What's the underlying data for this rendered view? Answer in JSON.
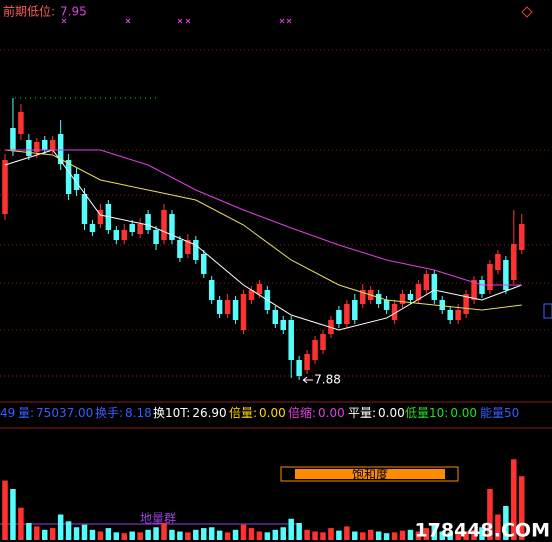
{
  "chart_data": {
    "type": "candlestick",
    "prior_low": {
      "label": "前期低位:",
      "value": 7.95
    },
    "low_label": 7.88,
    "low_index": 37,
    "up_color": "#ff3232",
    "down_color": "#54fcfc",
    "ylim": [
      7.78,
      9.68
    ],
    "candles": [
      [
        8.71,
        9.01,
        8.68,
        8.98
      ],
      [
        9.14,
        9.29,
        9.0,
        9.03
      ],
      [
        9.11,
        9.26,
        9.08,
        9.22
      ],
      [
        9.08,
        9.11,
        8.98,
        9.0
      ],
      [
        9.02,
        9.09,
        8.99,
        9.07
      ],
      [
        9.08,
        9.1,
        9.01,
        9.03
      ],
      [
        9.03,
        9.1,
        9.01,
        9.08
      ],
      [
        9.11,
        9.18,
        8.93,
        8.96
      ],
      [
        8.98,
        9.01,
        8.78,
        8.81
      ],
      [
        8.91,
        8.94,
        8.8,
        8.83
      ],
      [
        8.81,
        8.84,
        8.63,
        8.66
      ],
      [
        8.66,
        8.68,
        8.6,
        8.62
      ],
      [
        8.66,
        8.76,
        8.64,
        8.73
      ],
      [
        8.76,
        8.78,
        8.61,
        8.63
      ],
      [
        8.63,
        8.65,
        8.56,
        8.58
      ],
      [
        8.58,
        8.66,
        8.56,
        8.63
      ],
      [
        8.66,
        8.68,
        8.6,
        8.62
      ],
      [
        8.61,
        8.69,
        8.59,
        8.66
      ],
      [
        8.71,
        8.73,
        8.61,
        8.63
      ],
      [
        8.63,
        8.65,
        8.53,
        8.56
      ],
      [
        8.58,
        8.76,
        8.56,
        8.73
      ],
      [
        8.71,
        8.73,
        8.56,
        8.58
      ],
      [
        8.58,
        8.6,
        8.47,
        8.49
      ],
      [
        8.51,
        8.61,
        8.49,
        8.58
      ],
      [
        8.58,
        8.6,
        8.46,
        8.48
      ],
      [
        8.51,
        8.53,
        8.39,
        8.41
      ],
      [
        8.38,
        8.4,
        8.26,
        8.28
      ],
      [
        8.28,
        8.3,
        8.19,
        8.21
      ],
      [
        8.21,
        8.31,
        8.19,
        8.28
      ],
      [
        8.28,
        8.3,
        8.16,
        8.18
      ],
      [
        8.13,
        8.33,
        8.11,
        8.31
      ],
      [
        8.28,
        8.35,
        8.26,
        8.33
      ],
      [
        8.31,
        8.38,
        8.29,
        8.36
      ],
      [
        8.33,
        8.35,
        8.21,
        8.23
      ],
      [
        8.23,
        8.25,
        8.14,
        8.16
      ],
      [
        8.18,
        8.2,
        8.11,
        8.13
      ],
      [
        8.18,
        8.2,
        7.89,
        7.98
      ],
      [
        7.98,
        8.0,
        7.88,
        7.9
      ],
      [
        7.93,
        8.03,
        7.91,
        8.01
      ],
      [
        7.98,
        8.1,
        7.96,
        8.08
      ],
      [
        8.03,
        8.13,
        8.01,
        8.11
      ],
      [
        8.11,
        8.2,
        8.09,
        8.18
      ],
      [
        8.23,
        8.25,
        8.14,
        8.16
      ],
      [
        8.16,
        8.28,
        8.14,
        8.26
      ],
      [
        8.28,
        8.31,
        8.16,
        8.18
      ],
      [
        8.26,
        8.36,
        8.24,
        8.33
      ],
      [
        8.28,
        8.35,
        8.26,
        8.33
      ],
      [
        8.31,
        8.33,
        8.24,
        8.26
      ],
      [
        8.28,
        8.3,
        8.21,
        8.23
      ],
      [
        8.18,
        8.28,
        8.16,
        8.26
      ],
      [
        8.26,
        8.33,
        8.24,
        8.31
      ],
      [
        8.31,
        8.33,
        8.26,
        8.28
      ],
      [
        8.28,
        8.38,
        8.26,
        8.36
      ],
      [
        8.33,
        8.43,
        8.31,
        8.41
      ],
      [
        8.41,
        8.43,
        8.26,
        8.28
      ],
      [
        8.28,
        8.3,
        8.21,
        8.23
      ],
      [
        8.23,
        8.25,
        8.16,
        8.18
      ],
      [
        8.18,
        8.26,
        8.16,
        8.23
      ],
      [
        8.21,
        8.33,
        8.19,
        8.31
      ],
      [
        8.28,
        8.4,
        8.26,
        8.38
      ],
      [
        8.38,
        8.4,
        8.29,
        8.31
      ],
      [
        8.33,
        8.48,
        8.31,
        8.46
      ],
      [
        8.43,
        8.53,
        8.41,
        8.51
      ],
      [
        8.48,
        8.5,
        8.31,
        8.33
      ],
      [
        8.38,
        8.73,
        8.36,
        8.56
      ],
      [
        8.53,
        8.71,
        8.51,
        8.66
      ]
    ],
    "lines": [
      {
        "color": "#ffffff",
        "x": [
          0,
          6,
          12,
          18,
          24,
          30,
          36,
          42,
          48,
          54,
          60,
          65
        ],
        "values": [
          8.955,
          9.03,
          8.705,
          8.655,
          8.555,
          8.355,
          8.205,
          8.13,
          8.19,
          8.33,
          8.28,
          8.355
        ]
      },
      {
        "color": "#e8e060",
        "x": [
          0,
          6,
          12,
          18,
          24,
          30,
          36,
          42,
          48,
          54,
          60,
          65
        ],
        "values": [
          9.03,
          9.005,
          8.88,
          8.83,
          8.78,
          8.655,
          8.48,
          8.355,
          8.28,
          8.255,
          8.23,
          8.255
        ]
      },
      {
        "color": "#e040e0",
        "x": [
          0,
          6,
          12,
          18,
          24,
          30,
          36,
          42,
          48,
          54,
          60,
          65
        ],
        "values": [
          9.03,
          9.03,
          9.03,
          8.955,
          8.83,
          8.73,
          8.64,
          8.555,
          8.48,
          8.43,
          8.355,
          8.355
        ]
      }
    ],
    "volume_ylim": [
      0,
      100000
    ],
    "volumes": [
      70000,
      60000,
      38000,
      20000,
      16000,
      12000,
      14000,
      30000,
      22000,
      15000,
      18000,
      12000,
      10000,
      14000,
      9000,
      8000,
      10000,
      9000,
      12000,
      15000,
      20000,
      12000,
      10000,
      9000,
      12000,
      14000,
      15000,
      11000,
      9000,
      12000,
      18000,
      14000,
      10000,
      9000,
      12000,
      15000,
      25000,
      20000,
      12000,
      10000,
      9000,
      14000,
      11000,
      16000,
      10000,
      9000,
      12000,
      10000,
      8000,
      9000,
      11000,
      12000,
      10000,
      14000,
      18000,
      10000,
      9000,
      8000,
      10000,
      12000,
      15000,
      60000,
      30000,
      40000,
      95000,
      75037
    ],
    "info": [
      {
        "label": "49",
        "value": "",
        "color": "#3a5cff"
      },
      {
        "label": "量:",
        "value": "75037.00",
        "color": "#3a5cff"
      },
      {
        "label": "换手:",
        "value": "8.18",
        "color": "#3a5cff"
      },
      {
        "label": "换10T:",
        "value": "26.90",
        "color": "#ffffff"
      },
      {
        "label": "倍量:",
        "value": "0.00",
        "color": "#ffd700"
      },
      {
        "label": "倍缩:",
        "value": "0.00",
        "color": "#e040e0"
      },
      {
        "label": "平量:",
        "value": "0.00",
        "color": "#ffffff"
      },
      {
        "label": "低量10:",
        "value": "0.00",
        "color": "#20e020"
      },
      {
        "label": "能量50",
        "value": "",
        "color": "#3a5cff"
      }
    ],
    "saturation_label": "饱和度",
    "low_volume_label": "地量群",
    "watermark": "178448.COM"
  }
}
